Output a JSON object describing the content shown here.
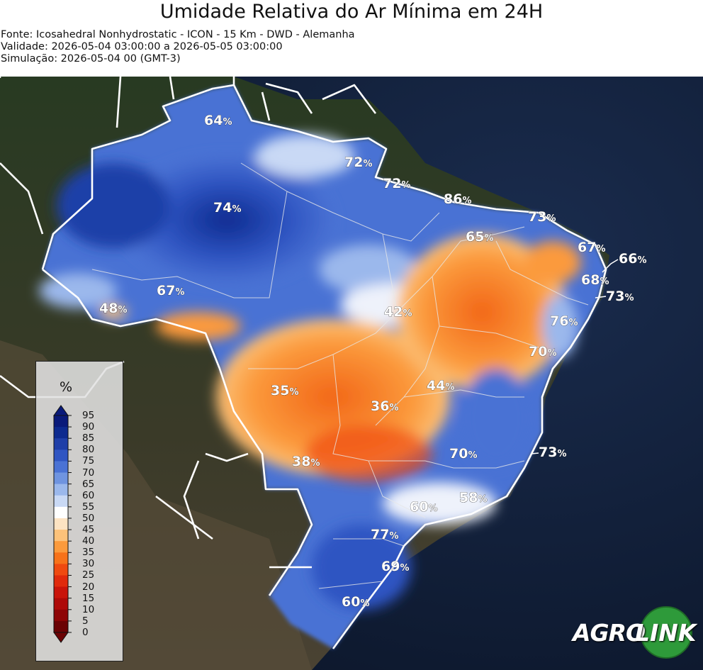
{
  "header": {
    "title": "Umidade Relativa do Ar Mínima em 24H",
    "source": "Fonte: Icosahedral Nonhydrostatic - ICON - 15 Km - DWD - Alemanha",
    "validity": "Validade: 2026-05-04 03:00:00 a 2026-05-05 03:00:00",
    "simulation": "Simulação: 2026-05-04 00 (GMT-3)"
  },
  "legend": {
    "unit": "%",
    "ticks": [
      "95",
      "90",
      "85",
      "80",
      "75",
      "70",
      "65",
      "60",
      "55",
      "50",
      "45",
      "40",
      "35",
      "30",
      "25",
      "20",
      "15",
      "10",
      "5",
      "0"
    ],
    "colors": [
      "#0a1a7a",
      "#0d2a8f",
      "#1f3fa8",
      "#2f55c2",
      "#4a72d4",
      "#6f94e0",
      "#9bb8ec",
      "#c9d9f5",
      "#ffffff",
      "#fde3c2",
      "#fcc27a",
      "#fb9a3c",
      "#f7721a",
      "#ef4a10",
      "#e02a0c",
      "#c9140a",
      "#ae0a08",
      "#8e0506",
      "#6b0204"
    ]
  },
  "labels": [
    {
      "value": "64",
      "unit": "%"
    },
    {
      "value": "72",
      "unit": "%"
    },
    {
      "value": "72",
      "unit": "%"
    },
    {
      "value": "74",
      "unit": "%"
    },
    {
      "value": "86",
      "unit": "%"
    },
    {
      "value": "73",
      "unit": "%"
    },
    {
      "value": "65",
      "unit": "%"
    },
    {
      "value": "67",
      "unit": "%"
    },
    {
      "value": "66",
      "unit": "%"
    },
    {
      "value": "68",
      "unit": "%"
    },
    {
      "value": "73",
      "unit": "%"
    },
    {
      "value": "67",
      "unit": "%"
    },
    {
      "value": "48",
      "unit": "%"
    },
    {
      "value": "42",
      "unit": "%"
    },
    {
      "value": "76",
      "unit": "%"
    },
    {
      "value": "70",
      "unit": "%"
    },
    {
      "value": "35",
      "unit": "%"
    },
    {
      "value": "44",
      "unit": "%"
    },
    {
      "value": "36",
      "unit": "%"
    },
    {
      "value": "38",
      "unit": "%"
    },
    {
      "value": "70",
      "unit": "%"
    },
    {
      "value": "73",
      "unit": "%"
    },
    {
      "value": "58",
      "unit": "%"
    },
    {
      "value": "60",
      "unit": "%"
    },
    {
      "value": "77",
      "unit": "%"
    },
    {
      "value": "69",
      "unit": "%"
    },
    {
      "value": "60",
      "unit": "%"
    }
  ],
  "logo": {
    "left": "AGRO",
    "right": "LINK"
  }
}
